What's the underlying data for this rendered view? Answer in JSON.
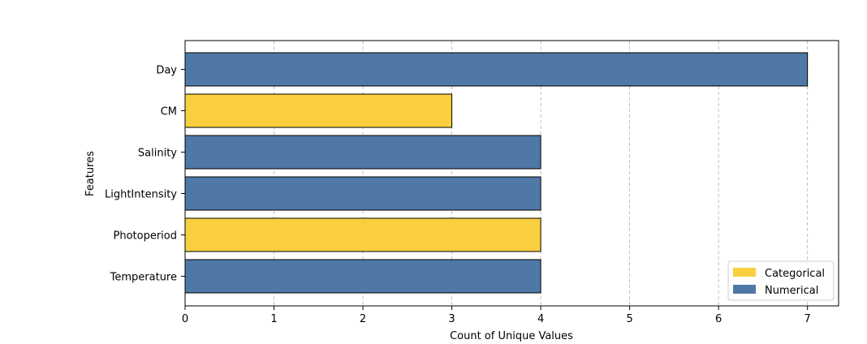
{
  "chart_data": {
    "type": "bar",
    "orientation": "horizontal",
    "xlabel": "Count of Unique Values",
    "ylabel": "Features",
    "xlim": [
      0,
      7.35
    ],
    "xticks": [
      0,
      1,
      2,
      3,
      4,
      5,
      6,
      7
    ],
    "grid": {
      "x": true,
      "y": false,
      "style": "dashed"
    },
    "legend_position": "bottom-right",
    "legend": [
      {
        "name": "Categorical",
        "color": "#f9cf3f"
      },
      {
        "name": "Numerical",
        "color": "#4f78a7"
      }
    ],
    "categories": [
      "Day",
      "CM",
      "Salinity",
      "LightIntensity",
      "Photoperiod",
      "Temperature"
    ],
    "values": [
      7,
      3,
      4,
      4,
      4,
      4
    ],
    "types": [
      "Numerical",
      "Categorical",
      "Numerical",
      "Numerical",
      "Categorical",
      "Numerical"
    ]
  }
}
